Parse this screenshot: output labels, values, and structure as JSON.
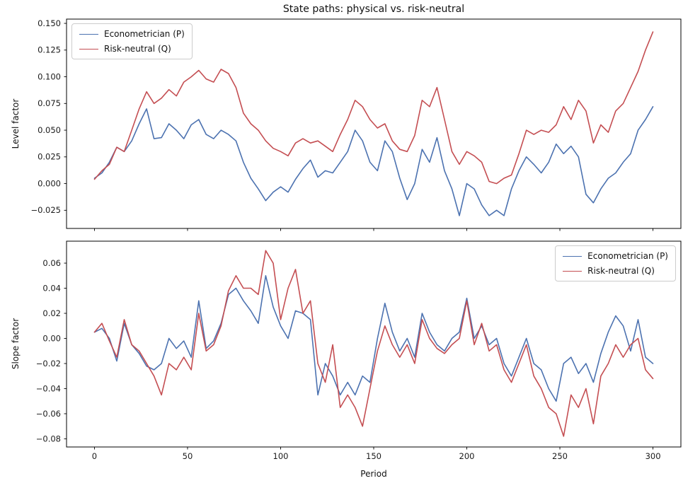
{
  "figure": {
    "title": "State paths: physical vs. risk-neutral",
    "xlabel": "Period",
    "background": "#ffffff",
    "spine_color": "#000000"
  },
  "chart_data": [
    {
      "type": "line",
      "title": "State paths: physical vs. risk-neutral",
      "ylabel": "Level factor",
      "xlabel": "",
      "grid": false,
      "legend_position": "upper left",
      "xlim": [
        -15,
        315
      ],
      "ylim": [
        -0.042,
        0.154
      ],
      "ytick_values": [
        0.15,
        0.125,
        0.1,
        0.075,
        0.05,
        0.025,
        0.0,
        -0.025
      ],
      "ytick_labels": [
        "0.150",
        "0.125",
        "0.100",
        "0.075",
        "0.050",
        "0.025",
        "0.000",
        "−0.025"
      ],
      "xtick_values": [
        0,
        50,
        100,
        150,
        200,
        250,
        300
      ],
      "xtick_labels": null,
      "x": [
        0,
        4,
        8,
        12,
        16,
        20,
        24,
        28,
        32,
        36,
        40,
        44,
        48,
        52,
        56,
        60,
        64,
        68,
        72,
        76,
        80,
        84,
        88,
        92,
        96,
        100,
        104,
        108,
        112,
        116,
        120,
        124,
        128,
        132,
        136,
        140,
        144,
        148,
        152,
        156,
        160,
        164,
        168,
        172,
        176,
        180,
        184,
        188,
        192,
        196,
        200,
        204,
        208,
        212,
        216,
        220,
        224,
        228,
        232,
        236,
        240,
        244,
        248,
        252,
        256,
        260,
        264,
        268,
        272,
        276,
        280,
        284,
        288,
        292,
        296,
        300
      ],
      "series": [
        {
          "name": "Econometrician (P)",
          "color": "#4C72B0",
          "values": [
            0.005,
            0.01,
            0.02,
            0.034,
            0.03,
            0.04,
            0.056,
            0.07,
            0.042,
            0.043,
            0.056,
            0.05,
            0.042,
            0.055,
            0.06,
            0.046,
            0.042,
            0.05,
            0.046,
            0.04,
            0.02,
            0.005,
            -0.005,
            -0.016,
            -0.008,
            -0.003,
            -0.008,
            0.004,
            0.014,
            0.022,
            0.006,
            0.012,
            0.01,
            0.02,
            0.03,
            0.05,
            0.04,
            0.02,
            0.012,
            0.04,
            0.03,
            0.005,
            -0.015,
            0.0,
            0.032,
            0.02,
            0.043,
            0.012,
            -0.005,
            -0.03,
            0.0,
            -0.005,
            -0.02,
            -0.03,
            -0.025,
            -0.03,
            -0.005,
            0.012,
            0.025,
            0.018,
            0.01,
            0.02,
            0.037,
            0.028,
            0.035,
            0.025,
            -0.01,
            -0.018,
            -0.005,
            0.005,
            0.01,
            0.02,
            0.028,
            0.05,
            0.06,
            0.072
          ]
        },
        {
          "name": "Risk-neutral (Q)",
          "color": "#C44E52",
          "values": [
            0.004,
            0.012,
            0.018,
            0.034,
            0.03,
            0.05,
            0.07,
            0.086,
            0.075,
            0.08,
            0.088,
            0.082,
            0.095,
            0.1,
            0.106,
            0.098,
            0.095,
            0.107,
            0.103,
            0.09,
            0.066,
            0.056,
            0.05,
            0.04,
            0.033,
            0.03,
            0.026,
            0.038,
            0.042,
            0.038,
            0.04,
            0.035,
            0.03,
            0.046,
            0.06,
            0.078,
            0.072,
            0.06,
            0.052,
            0.056,
            0.04,
            0.032,
            0.03,
            0.045,
            0.078,
            0.072,
            0.09,
            0.06,
            0.03,
            0.018,
            0.03,
            0.026,
            0.02,
            0.002,
            0.0,
            0.005,
            0.008,
            0.028,
            0.05,
            0.046,
            0.05,
            0.048,
            0.055,
            0.072,
            0.06,
            0.078,
            0.068,
            0.038,
            0.055,
            0.048,
            0.068,
            0.075,
            0.09,
            0.105,
            0.125,
            0.142
          ]
        }
      ]
    },
    {
      "type": "line",
      "title": "",
      "ylabel": "Slope factor",
      "xlabel": "Period",
      "grid": false,
      "legend_position": "upper right",
      "xlim": [
        -15,
        315
      ],
      "ylim": [
        -0.0865,
        0.0775
      ],
      "ytick_values": [
        0.06,
        0.04,
        0.02,
        0.0,
        -0.02,
        -0.04,
        -0.06,
        -0.08
      ],
      "ytick_labels": [
        "0.06",
        "0.04",
        "0.02",
        "0.00",
        "−0.02",
        "−0.04",
        "−0.06",
        "−0.08"
      ],
      "xtick_values": [
        0,
        50,
        100,
        150,
        200,
        250,
        300
      ],
      "xtick_labels": [
        "0",
        "50",
        "100",
        "150",
        "200",
        "250",
        "300"
      ],
      "x": [
        0,
        4,
        8,
        12,
        16,
        20,
        24,
        28,
        32,
        36,
        40,
        44,
        48,
        52,
        56,
        60,
        64,
        68,
        72,
        76,
        80,
        84,
        88,
        92,
        96,
        100,
        104,
        108,
        112,
        116,
        120,
        124,
        128,
        132,
        136,
        140,
        144,
        148,
        152,
        156,
        160,
        164,
        168,
        172,
        176,
        180,
        184,
        188,
        192,
        196,
        200,
        204,
        208,
        212,
        216,
        220,
        224,
        228,
        232,
        236,
        240,
        244,
        248,
        252,
        256,
        260,
        264,
        268,
        272,
        276,
        280,
        284,
        288,
        292,
        296,
        300
      ],
      "series": [
        {
          "name": "Econometrician (P)",
          "color": "#4C72B0",
          "values": [
            0.005,
            0.008,
            0.0,
            -0.018,
            0.012,
            -0.005,
            -0.012,
            -0.022,
            -0.025,
            -0.02,
            0.0,
            -0.008,
            -0.002,
            -0.015,
            0.03,
            -0.008,
            -0.002,
            0.012,
            0.035,
            0.04,
            0.03,
            0.022,
            0.012,
            0.05,
            0.025,
            0.01,
            0.0,
            0.022,
            0.02,
            0.015,
            -0.045,
            -0.02,
            -0.03,
            -0.045,
            -0.035,
            -0.045,
            -0.03,
            -0.035,
            0.0,
            0.028,
            0.005,
            -0.01,
            0.0,
            -0.015,
            0.02,
            0.005,
            -0.005,
            -0.01,
            0.0,
            0.005,
            0.032,
            0.0,
            0.01,
            -0.005,
            0.0,
            -0.02,
            -0.03,
            -0.015,
            0.0,
            -0.02,
            -0.025,
            -0.04,
            -0.05,
            -0.02,
            -0.015,
            -0.028,
            -0.02,
            -0.035,
            -0.012,
            0.005,
            0.018,
            0.01,
            -0.01,
            0.015,
            -0.015,
            -0.02
          ]
        },
        {
          "name": "Risk-neutral (Q)",
          "color": "#C44E52",
          "values": [
            0.005,
            0.012,
            -0.002,
            -0.015,
            0.015,
            -0.005,
            -0.01,
            -0.02,
            -0.03,
            -0.045,
            -0.02,
            -0.025,
            -0.015,
            -0.025,
            0.02,
            -0.01,
            -0.005,
            0.01,
            0.038,
            0.05,
            0.04,
            0.04,
            0.035,
            0.07,
            0.06,
            0.015,
            0.04,
            0.055,
            0.02,
            0.03,
            -0.02,
            -0.035,
            -0.005,
            -0.055,
            -0.045,
            -0.055,
            -0.07,
            -0.04,
            -0.01,
            0.01,
            -0.005,
            -0.015,
            -0.005,
            -0.02,
            0.015,
            0.0,
            -0.008,
            -0.012,
            -0.005,
            0.0,
            0.03,
            -0.005,
            0.012,
            -0.01,
            -0.005,
            -0.025,
            -0.035,
            -0.02,
            -0.005,
            -0.03,
            -0.04,
            -0.055,
            -0.06,
            -0.078,
            -0.045,
            -0.055,
            -0.04,
            -0.068,
            -0.03,
            -0.02,
            -0.005,
            -0.015,
            -0.005,
            0.0,
            -0.025,
            -0.032
          ]
        }
      ]
    }
  ]
}
